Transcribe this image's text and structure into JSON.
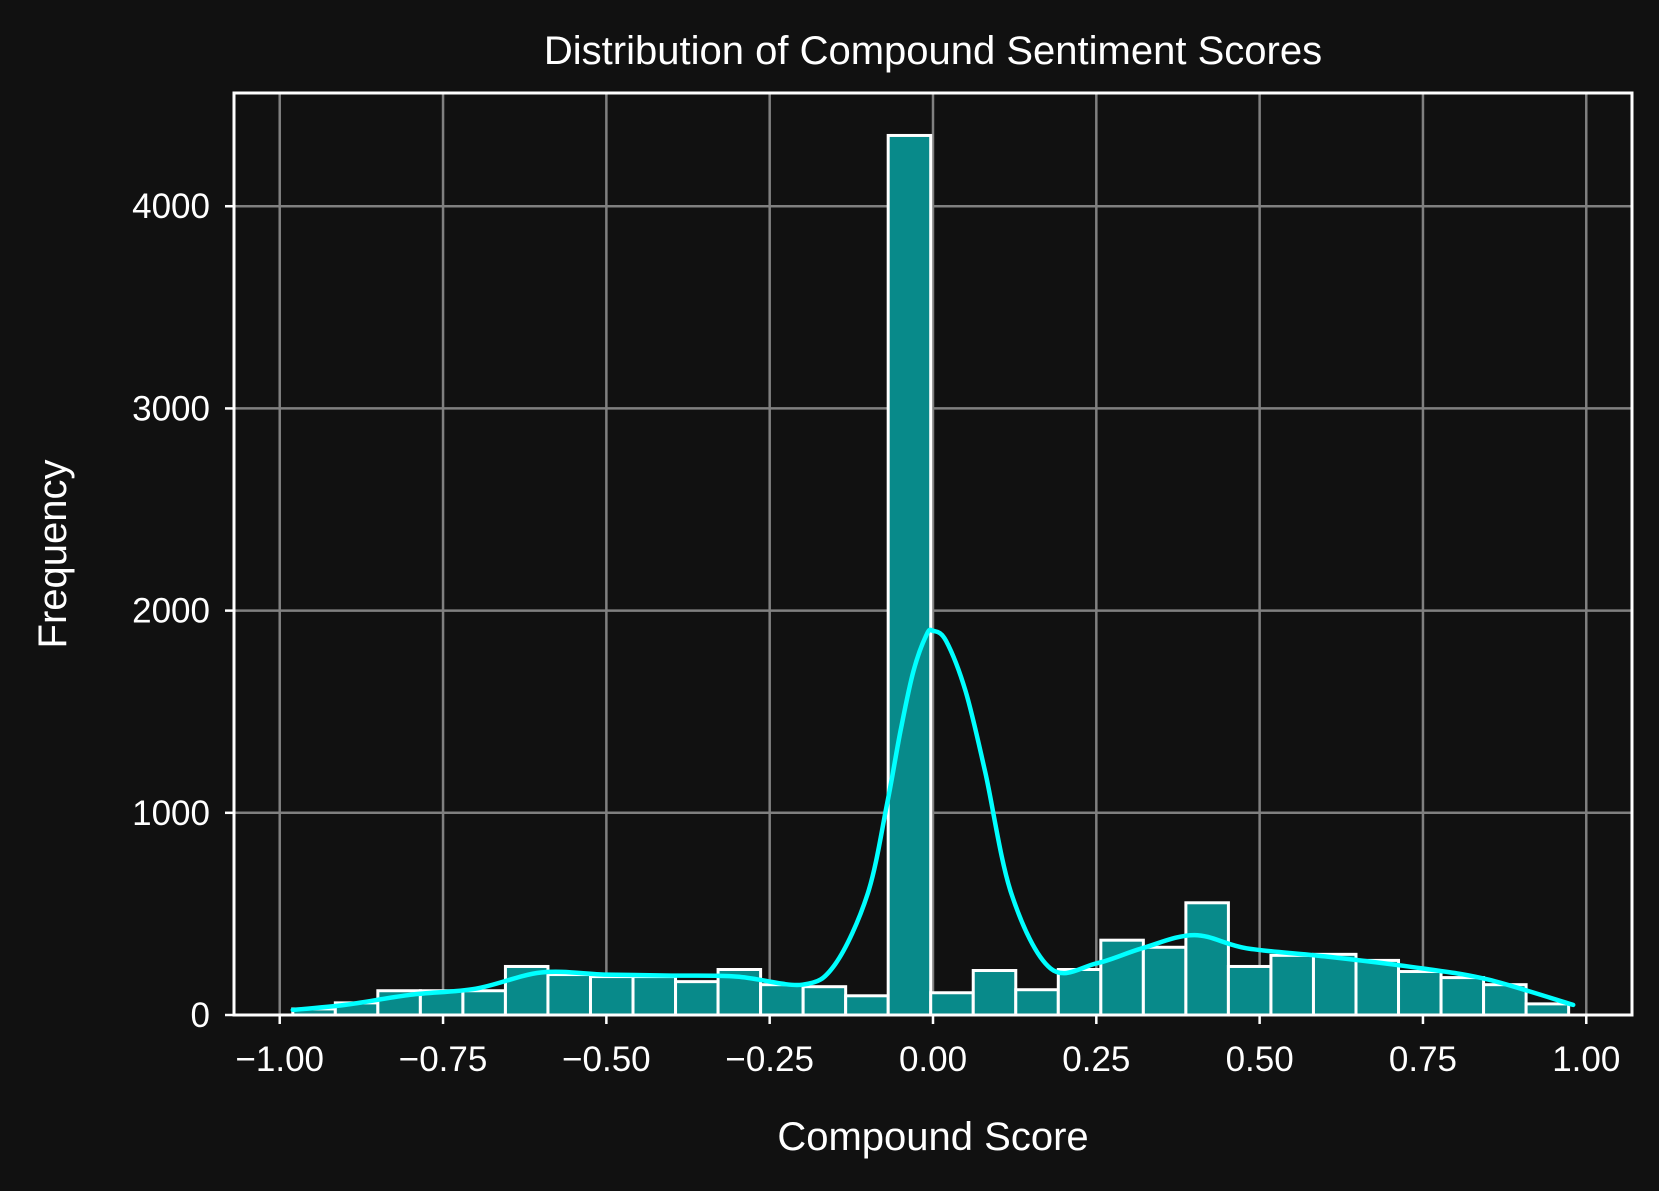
{
  "chart_data": {
    "type": "bar",
    "title": "Distribution of Compound Sentiment Scores",
    "xlabel": "Compound Score",
    "ylabel": "Frequency",
    "xlim": [
      -1.07,
      1.07
    ],
    "ylim": [
      0,
      4560
    ],
    "x_ticks": [
      -1.0,
      -0.75,
      -0.5,
      -0.25,
      0.0,
      0.25,
      0.5,
      0.75,
      1.0
    ],
    "x_tick_labels": [
      "−1.00",
      "−0.75",
      "−0.50",
      "−0.25",
      "0.00",
      "0.25",
      "0.50",
      "0.75",
      "1.00"
    ],
    "y_ticks": [
      0,
      1000,
      2000,
      3000,
      4000
    ],
    "y_tick_labels": [
      "0",
      "1000",
      "2000",
      "3000",
      "4000"
    ],
    "grid": true,
    "bins": {
      "start": -0.98,
      "width": 0.0651,
      "counts": [
        30,
        60,
        120,
        120,
        120,
        240,
        200,
        190,
        190,
        165,
        225,
        150,
        140,
        95,
        4350,
        110,
        220,
        125,
        225,
        370,
        335,
        555,
        240,
        295,
        300,
        270,
        215,
        185,
        150,
        55
      ]
    },
    "kde": {
      "x": [
        -0.98,
        -0.9,
        -0.8,
        -0.7,
        -0.6,
        -0.5,
        -0.4,
        -0.3,
        -0.2,
        -0.15,
        -0.1,
        -0.07,
        -0.05,
        -0.03,
        -0.01,
        0.0,
        0.02,
        0.05,
        0.08,
        0.12,
        0.18,
        0.25,
        0.32,
        0.4,
        0.48,
        0.6,
        0.75,
        0.85,
        0.98
      ],
      "y": [
        25,
        50,
        100,
        130,
        210,
        200,
        195,
        190,
        150,
        250,
        600,
        1050,
        1400,
        1700,
        1880,
        1900,
        1850,
        1600,
        1200,
        600,
        230,
        255,
        330,
        395,
        330,
        290,
        230,
        175,
        50
      ]
    },
    "colors": {
      "background": "#111111",
      "bar_fill": "#088a8a",
      "bar_edge": "#ffffff",
      "kde_line": "#00ffff",
      "grid": "#808080",
      "text": "#ffffff"
    }
  }
}
